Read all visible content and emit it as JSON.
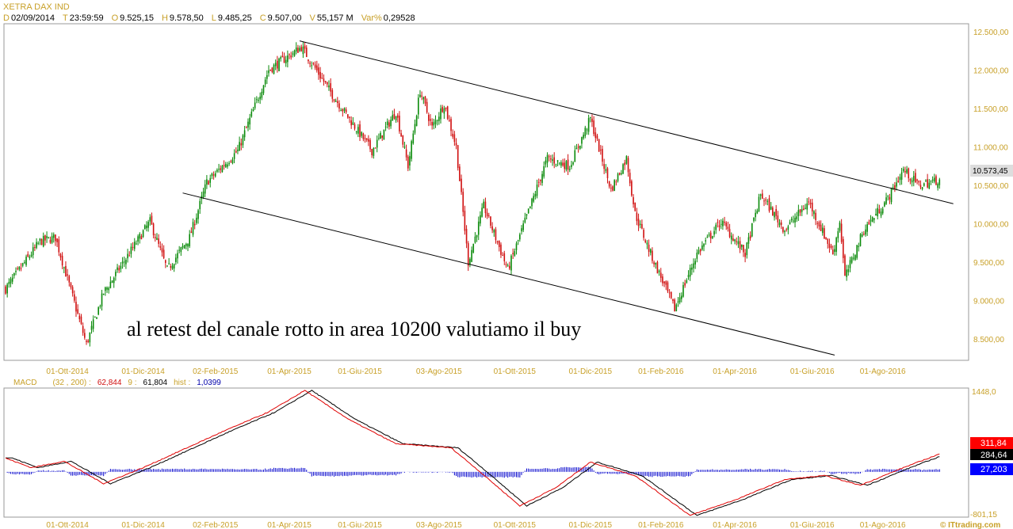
{
  "header": {
    "title": "XETRA DAX IND",
    "fields": [
      {
        "key": "D",
        "value": "02/09/2014"
      },
      {
        "key": "T",
        "value": "23:59:59"
      },
      {
        "key": "O",
        "value": "9.525,15"
      },
      {
        "key": "H",
        "value": "9.578,50"
      },
      {
        "key": "L",
        "value": "9.485,25"
      },
      {
        "key": "C",
        "value": "9.507,00"
      },
      {
        "key": "V",
        "value": "55,157 M"
      },
      {
        "key": "Var%",
        "value": "0,29528"
      }
    ]
  },
  "annotation": "al retest del canale rotto in area 10200 valutiamo il buy",
  "last_price_label": "10.573,45",
  "macd_legend": {
    "name": "MACD",
    "params": "(32 , 200) :",
    "macd_value": "62,844",
    "signal_label": "9 :",
    "signal_value": "61,804",
    "hist_label": "hist :",
    "hist_value": "1,0399"
  },
  "macd_badges": {
    "macd": "311,84",
    "signal": "284,64",
    "hist": "27,203"
  },
  "macd_axis": {
    "max_label": "1448,0",
    "min_label": "-801,15"
  },
  "watermark": "© ITtrading.com",
  "colors": {
    "up": "#0a8a0a",
    "down": "#d01010",
    "axis": "#c8a028",
    "macd": "#e00000",
    "signal": "#000000",
    "hist": "#0000cc"
  },
  "chart_data": [
    {
      "type": "candlestick",
      "title": "XETRA DAX IND",
      "x_unit": "trading-day index",
      "x_ticks": [
        {
          "i": 36,
          "label": "01-Ott-2014"
        },
        {
          "i": 80,
          "label": "01-Dic-2014"
        },
        {
          "i": 122,
          "label": "02-Feb-2015"
        },
        {
          "i": 165,
          "label": "01-Apr-2015"
        },
        {
          "i": 206,
          "label": "01-Giu-2015"
        },
        {
          "i": 252,
          "label": "03-Ago-2015"
        },
        {
          "i": 296,
          "label": "01-Ott-2015"
        },
        {
          "i": 340,
          "label": "01-Dic-2015"
        },
        {
          "i": 381,
          "label": "01-Feb-2016"
        },
        {
          "i": 424,
          "label": "01-Apr-2016"
        },
        {
          "i": 469,
          "label": "01-Giu-2016"
        },
        {
          "i": 510,
          "label": "01-Ago-2016"
        }
      ],
      "y_ticks": [
        "12.500,00",
        "12.000,00",
        "11.500,00",
        "11.000,00",
        "10.500,00",
        "10.000,00",
        "9.500,00",
        "9.000,00",
        "8.500,00"
      ],
      "ylim": [
        8400,
        12600
      ],
      "close_path": [
        [
          0,
          9150
        ],
        [
          20,
          9770
        ],
        [
          29,
          9820
        ],
        [
          47,
          8430
        ],
        [
          57,
          9100
        ],
        [
          84,
          10030
        ],
        [
          94,
          9400
        ],
        [
          107,
          9820
        ],
        [
          117,
          10540
        ],
        [
          135,
          10950
        ],
        [
          153,
          12000
        ],
        [
          172,
          12300
        ],
        [
          190,
          11680
        ],
        [
          213,
          10950
        ],
        [
          227,
          11460
        ],
        [
          234,
          10750
        ],
        [
          241,
          11730
        ],
        [
          248,
          11250
        ],
        [
          255,
          11560
        ],
        [
          262,
          11000
        ],
        [
          269,
          9500
        ],
        [
          278,
          10230
        ],
        [
          292,
          9400
        ],
        [
          315,
          10850
        ],
        [
          328,
          10750
        ],
        [
          340,
          11370
        ],
        [
          352,
          10440
        ],
        [
          361,
          10850
        ],
        [
          366,
          10130
        ],
        [
          375,
          9610
        ],
        [
          389,
          8890
        ],
        [
          402,
          9610
        ],
        [
          416,
          10030
        ],
        [
          430,
          9610
        ],
        [
          439,
          10380
        ],
        [
          453,
          9920
        ],
        [
          467,
          10280
        ],
        [
          481,
          9610
        ],
        [
          485,
          10030
        ],
        [
          488,
          9300
        ],
        [
          499,
          9920
        ],
        [
          513,
          10330
        ],
        [
          522,
          10700
        ],
        [
          531,
          10500
        ],
        [
          543,
          10573
        ]
      ],
      "channel_upper": [
        [
          171,
          12380
        ],
        [
          551,
          10260
        ]
      ],
      "channel_lower": [
        [
          103,
          10400
        ],
        [
          482,
          8290
        ]
      ]
    },
    {
      "type": "line",
      "title": "MACD (32, 200) 9",
      "ylim": [
        -801.15,
        1448.0
      ],
      "macd_path": [
        [
          0,
          240
        ],
        [
          15,
          73
        ],
        [
          34,
          185
        ],
        [
          57,
          -205
        ],
        [
          80,
          73
        ],
        [
          126,
          698
        ],
        [
          153,
          1045
        ],
        [
          174,
          1420
        ],
        [
          200,
          906
        ],
        [
          227,
          490
        ],
        [
          259,
          420
        ],
        [
          273,
          73
        ],
        [
          299,
          -593
        ],
        [
          320,
          -275
        ],
        [
          340,
          170
        ],
        [
          366,
          -66
        ],
        [
          398,
          -760
        ],
        [
          425,
          -480
        ],
        [
          453,
          -135
        ],
        [
          476,
          -66
        ],
        [
          497,
          -233
        ],
        [
          522,
          73
        ],
        [
          543,
          311.84
        ]
      ]
    }
  ]
}
